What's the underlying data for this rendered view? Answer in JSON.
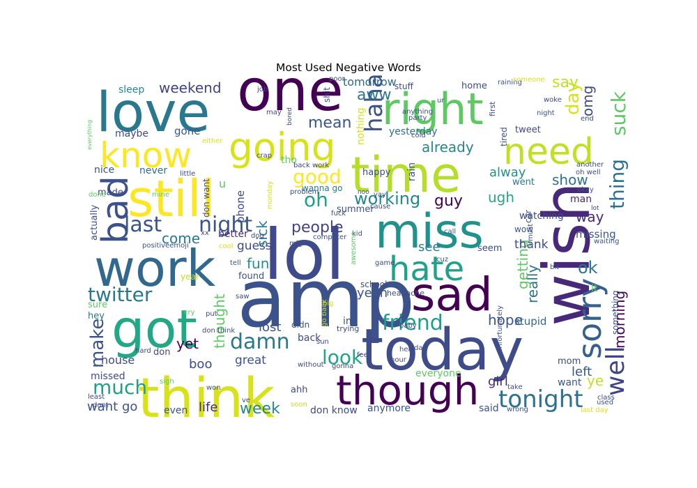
{
  "chart_data": {
    "type": "wordcloud",
    "title": "Most Used Negative Words",
    "palette": "viridis",
    "words": [
      {
        "text": "amp",
        "color": "#3b528b",
        "vertical": false
      },
      {
        "text": "lol",
        "color": "#3e4a89",
        "vertical": false
      },
      {
        "text": "one",
        "color": "#440154",
        "vertical": false
      },
      {
        "text": "today",
        "color": "#3e4c8a",
        "vertical": false
      },
      {
        "text": "think",
        "color": "#d8e219",
        "vertical": false
      },
      {
        "text": "time",
        "color": "#b5de2b",
        "vertical": false
      },
      {
        "text": "miss",
        "color": "#21918c",
        "vertical": false
      },
      {
        "text": "still",
        "color": "#fde725",
        "vertical": false
      },
      {
        "text": "wish",
        "color": "#482878",
        "vertical": true
      },
      {
        "text": "love",
        "color": "#2a788e",
        "vertical": false
      },
      {
        "text": "got",
        "color": "#22a884",
        "vertical": false
      },
      {
        "text": "work",
        "color": "#31688e",
        "vertical": false
      },
      {
        "text": "right",
        "color": "#5ec962",
        "vertical": false
      },
      {
        "text": "sad",
        "color": "#440154",
        "vertical": false
      },
      {
        "text": "though",
        "color": "#440154",
        "vertical": false
      },
      {
        "text": "going",
        "color": "#d8e219",
        "vertical": false
      },
      {
        "text": "know",
        "color": "#fde725",
        "vertical": false
      },
      {
        "text": "need",
        "color": "#c2df23",
        "vertical": false
      },
      {
        "text": "hate",
        "color": "#1fa287",
        "vertical": false
      },
      {
        "text": "sorry",
        "color": "#355f8d",
        "vertical": true
      },
      {
        "text": "bad",
        "color": "#3b528b",
        "vertical": true
      },
      {
        "text": "twitter",
        "color": "#2a788e",
        "vertical": false
      },
      {
        "text": "night",
        "color": "#39568c",
        "vertical": false
      },
      {
        "text": "last",
        "color": "#39568c",
        "vertical": false
      },
      {
        "text": "tonight",
        "color": "#2c728e",
        "vertical": false
      },
      {
        "text": "friend",
        "color": "#1f9e89",
        "vertical": false
      },
      {
        "text": "look",
        "color": "#20a386",
        "vertical": false
      },
      {
        "text": "damn",
        "color": "#2a788e",
        "vertical": false
      },
      {
        "text": "much",
        "color": "#1f9e89",
        "vertical": false
      },
      {
        "text": "well",
        "color": "#414487",
        "vertical": true
      },
      {
        "text": "good",
        "color": "#fde725",
        "vertical": false
      },
      {
        "text": "haha",
        "color": "#3b528b",
        "vertical": true
      },
      {
        "text": "suck",
        "color": "#5ec962",
        "vertical": true
      },
      {
        "text": "thing",
        "color": "#2c728e",
        "vertical": true
      },
      {
        "text": "day",
        "color": "#d8e219",
        "vertical": true
      },
      {
        "text": "say",
        "color": "#c2df23",
        "vertical": false
      },
      {
        "text": "oh",
        "color": "#1f9e89",
        "vertical": false
      },
      {
        "text": "mean",
        "color": "#39568c",
        "vertical": false
      },
      {
        "text": "people",
        "color": "#414487",
        "vertical": false
      },
      {
        "text": "working",
        "color": "#23888e",
        "vertical": false
      },
      {
        "text": "weekend",
        "color": "#414487",
        "vertical": false
      },
      {
        "text": "aww",
        "color": "#2a788e",
        "vertical": false
      },
      {
        "text": "tomorrow",
        "color": "#31688e",
        "vertical": false
      },
      {
        "text": "already",
        "color": "#23888e",
        "vertical": false
      },
      {
        "text": "yesterday",
        "color": "#2c728e",
        "vertical": false
      },
      {
        "text": "omg",
        "color": "#3e4a89",
        "vertical": true
      },
      {
        "text": "show",
        "color": "#2c728e",
        "vertical": false
      },
      {
        "text": "ugh",
        "color": "#22a884",
        "vertical": false
      },
      {
        "text": "alway",
        "color": "#21918c",
        "vertical": false
      },
      {
        "text": "guy",
        "color": "#440154",
        "vertical": false
      },
      {
        "text": "way",
        "color": "#482878",
        "vertical": false
      },
      {
        "text": "ok",
        "color": "#2a788e",
        "vertical": false
      },
      {
        "text": "morning",
        "color": "#440154",
        "vertical": true
      },
      {
        "text": "ye",
        "color": "#c2df23",
        "vertical": false
      },
      {
        "text": "come",
        "color": "#2a788e",
        "vertical": false
      },
      {
        "text": "guess",
        "color": "#3e4a89",
        "vertical": false
      },
      {
        "text": "fun",
        "color": "#21918c",
        "vertical": false
      },
      {
        "text": "see",
        "color": "#287c8e",
        "vertical": false
      },
      {
        "text": "yeah",
        "color": "#3b528b",
        "vertical": false
      },
      {
        "text": "hope",
        "color": "#3b528b",
        "vertical": false
      },
      {
        "text": "lost",
        "color": "#3b528b",
        "vertical": false
      },
      {
        "text": "make",
        "color": "#3b528b",
        "vertical": true
      },
      {
        "text": "yet",
        "color": "#440154",
        "vertical": false
      },
      {
        "text": "boo",
        "color": "#3e4a89",
        "vertical": false
      },
      {
        "text": "great",
        "color": "#3b528b",
        "vertical": false
      },
      {
        "text": "week",
        "color": "#23888e",
        "vertical": false
      },
      {
        "text": "life",
        "color": "#482878",
        "vertical": false
      },
      {
        "text": "want go",
        "color": "#3b528b",
        "vertical": false
      },
      {
        "text": "girl",
        "color": "#482878",
        "vertical": false
      },
      {
        "text": "left",
        "color": "#39568c",
        "vertical": false
      },
      {
        "text": "sick",
        "color": "#2a788e",
        "vertical": true
      },
      {
        "text": "really",
        "color": "#2c728e",
        "vertical": true
      },
      {
        "text": "getting",
        "color": "#5ec962",
        "vertical": true
      },
      {
        "text": "thank",
        "color": "#3e4a89",
        "vertical": false
      },
      {
        "text": "stupid",
        "color": "#31688e",
        "vertical": false
      },
      {
        "text": "thought",
        "color": "#5ec962",
        "vertical": true
      },
      {
        "text": "missing",
        "color": "#39568c",
        "vertical": false
      },
      {
        "text": "house",
        "color": "#3e4a89",
        "vertical": false
      },
      {
        "text": "missed",
        "color": "#3e4a89",
        "vertical": false
      },
      {
        "text": "even",
        "color": "#3b528b",
        "vertical": false
      },
      {
        "text": "don know",
        "color": "#3e4a89",
        "vertical": false
      },
      {
        "text": "anymore",
        "color": "#3b528b",
        "vertical": false
      },
      {
        "text": "everyone",
        "color": "#5ec962",
        "vertical": false
      },
      {
        "text": "said",
        "color": "#3b528b",
        "vertical": false
      },
      {
        "text": "mom",
        "color": "#3e4a89",
        "vertical": false
      },
      {
        "text": "want",
        "color": "#39568c",
        "vertical": false
      },
      {
        "text": "sleep",
        "color": "#23888e",
        "vertical": false
      },
      {
        "text": "gone",
        "color": "#39568c",
        "vertical": false
      },
      {
        "text": "maybe",
        "color": "#3e4a89",
        "vertical": false
      },
      {
        "text": "nice",
        "color": "#3b528b",
        "vertical": false
      },
      {
        "text": "never",
        "color": "#2c728e",
        "vertical": false
      },
      {
        "text": "made",
        "color": "#414487",
        "vertical": false
      },
      {
        "text": "better",
        "color": "#482878",
        "vertical": false
      },
      {
        "text": "tho",
        "color": "#5ec962",
        "vertical": false
      },
      {
        "text": "wanna go",
        "color": "#2a788e",
        "vertical": false
      },
      {
        "text": "happy",
        "color": "#3e4a89",
        "vertical": false
      },
      {
        "text": "rain",
        "color": "#3b528b",
        "vertical": true
      },
      {
        "text": "nothing",
        "color": "#d8e219",
        "vertical": true
      },
      {
        "text": "shit",
        "color": "#3e4a89",
        "vertical": true
      },
      {
        "text": "home",
        "color": "#3e4a89",
        "vertical": false
      },
      {
        "text": "tired",
        "color": "#3b528b",
        "vertical": true
      },
      {
        "text": "went",
        "color": "#2a788e",
        "vertical": false
      },
      {
        "text": "man",
        "color": "#482878",
        "vertical": false
      },
      {
        "text": "car",
        "color": "#3b528b",
        "vertical": true
      },
      {
        "text": "watching",
        "color": "#3e4a89",
        "vertical": false
      },
      {
        "text": "tweet",
        "color": "#3e4a89",
        "vertical": false
      },
      {
        "text": "wow",
        "color": "#3b528b",
        "vertical": false
      },
      {
        "text": "seem",
        "color": "#3e4a89",
        "vertical": false
      },
      {
        "text": "phone",
        "color": "#3e4a89",
        "vertical": true
      },
      {
        "text": "u",
        "color": "#5ec962",
        "vertical": false
      },
      {
        "text": "don want",
        "color": "#3e4a89",
        "vertical": true
      },
      {
        "text": "actually",
        "color": "#3e4a89",
        "vertical": true
      },
      {
        "text": "summer",
        "color": "#3b528b",
        "vertical": false
      },
      {
        "text": "found",
        "color": "#3b528b",
        "vertical": false
      },
      {
        "text": "school",
        "color": "#3e4a89",
        "vertical": false
      },
      {
        "text": "im",
        "color": "#3b528b",
        "vertical": false
      },
      {
        "text": "back",
        "color": "#3e4a89",
        "vertical": false
      },
      {
        "text": "didn",
        "color": "#3b528b",
        "vertical": false
      },
      {
        "text": "don",
        "color": "#3e4a89",
        "vertical": false
      },
      {
        "text": "sure",
        "color": "#5ec962",
        "vertical": false
      },
      {
        "text": "hey",
        "color": "#2a788e",
        "vertical": false
      },
      {
        "text": "ahh",
        "color": "#3e4a89",
        "vertical": false
      },
      {
        "text": "something",
        "color": "#3b528b",
        "vertical": true
      },
      {
        "text": "lt",
        "color": "#5ec962",
        "vertical": false
      },
      {
        "text": "year",
        "color": "#c2df23",
        "vertical": false
      },
      {
        "text": "stuff",
        "color": "#3e4a89",
        "vertical": false
      },
      {
        "text": "first",
        "color": "#3e4a89",
        "vertical": true
      },
      {
        "text": "raining",
        "color": "#3b528b",
        "vertical": false
      },
      {
        "text": "someone",
        "color": "#d8e219",
        "vertical": false
      },
      {
        "text": "woke",
        "color": "#3e4a89",
        "vertical": false
      },
      {
        "text": "night",
        "color": "#3b528b",
        "vertical": false
      },
      {
        "text": "end",
        "color": "#3e4a89",
        "vertical": false
      },
      {
        "text": "another",
        "color": "#3e4a89",
        "vertical": false
      },
      {
        "text": "oh well",
        "color": "#3e4a89",
        "vertical": false
      },
      {
        "text": "okay",
        "color": "#3b528b",
        "vertical": false
      },
      {
        "text": "lot",
        "color": "#3e4a89",
        "vertical": false
      },
      {
        "text": "waiting",
        "color": "#3b528b",
        "vertical": false
      },
      {
        "text": "bit",
        "color": "#3e4a89",
        "vertical": false
      },
      {
        "text": "call",
        "color": "#3b528b",
        "vertical": false
      },
      {
        "text": "cuz",
        "color": "#3b528b",
        "vertical": false
      },
      {
        "text": "game",
        "color": "#3e4a89",
        "vertical": false
      },
      {
        "text": "cause",
        "color": "#3e4a89",
        "vertical": false
      },
      {
        "text": "fuck",
        "color": "#3e4a89",
        "vertical": false
      },
      {
        "text": "kid",
        "color": "#3e4a89",
        "vertical": false
      },
      {
        "text": "computer",
        "color": "#3b528b",
        "vertical": false
      },
      {
        "text": "might",
        "color": "#3e4a89",
        "vertical": false
      },
      {
        "text": "dog",
        "color": "#3e4a89",
        "vertical": false
      },
      {
        "text": "positiveemoji",
        "color": "#3b528b",
        "vertical": false
      },
      {
        "text": "xx",
        "color": "#3e4a89",
        "vertical": false
      },
      {
        "text": "cool",
        "color": "#d8e219",
        "vertical": false
      },
      {
        "text": "tell",
        "color": "#3b528b",
        "vertical": false
      },
      {
        "text": "saw",
        "color": "#3e4a89",
        "vertical": false
      },
      {
        "text": "cry",
        "color": "#5ec962",
        "vertical": false
      },
      {
        "text": "put",
        "color": "#3e4a89",
        "vertical": false
      },
      {
        "text": "don think",
        "color": "#3e4a89",
        "vertical": false
      },
      {
        "text": "go back",
        "color": "#c2df23",
        "vertical": true
      },
      {
        "text": "big",
        "color": "#d8e219",
        "vertical": false
      },
      {
        "text": "trying",
        "color": "#3e4a89",
        "vertical": false
      },
      {
        "text": "sun",
        "color": "#3e4a89",
        "vertical": false
      },
      {
        "text": "awesome",
        "color": "#5ec962",
        "vertical": true
      },
      {
        "text": "headache",
        "color": "#3e4a89",
        "vertical": false
      },
      {
        "text": "baby",
        "color": "#3e4a89",
        "vertical": false
      },
      {
        "text": "help",
        "color": "#3e4a89",
        "vertical": false
      },
      {
        "text": "unfortunately",
        "color": "#3b528b",
        "vertical": true
      },
      {
        "text": "feel",
        "color": "#3e4a89",
        "vertical": false
      },
      {
        "text": "hour",
        "color": "#3e4a89",
        "vertical": false
      },
      {
        "text": "dad",
        "color": "#3e4a89",
        "vertical": false
      },
      {
        "text": "gonna",
        "color": "#3e4a89",
        "vertical": false
      },
      {
        "text": "without",
        "color": "#3e4a89",
        "vertical": false
      },
      {
        "text": "hard",
        "color": "#3e4a89",
        "vertical": false
      },
      {
        "text": "sigh",
        "color": "#5ec962",
        "vertical": false
      },
      {
        "text": "least",
        "color": "#3e4a89",
        "vertical": false
      },
      {
        "text": "dont",
        "color": "#3e4a89",
        "vertical": false
      },
      {
        "text": "won",
        "color": "#3e4a89",
        "vertical": false
      },
      {
        "text": "ve",
        "color": "#3e4a89",
        "vertical": false
      },
      {
        "text": "soon",
        "color": "#c2df23",
        "vertical": false
      },
      {
        "text": "wrong",
        "color": "#3b528b",
        "vertical": false
      },
      {
        "text": "take",
        "color": "#3e4a89",
        "vertical": false
      },
      {
        "text": "must",
        "color": "#3e4a89",
        "vertical": true
      },
      {
        "text": "class",
        "color": "#3e4a89",
        "vertical": false
      },
      {
        "text": "used",
        "color": "#3b528b",
        "vertical": false
      },
      {
        "text": "last day",
        "color": "#d8e219",
        "vertical": false
      },
      {
        "text": "everything",
        "color": "#5ec962",
        "vertical": true
      },
      {
        "text": "either",
        "color": "#d8e219",
        "vertical": false
      },
      {
        "text": "crap",
        "color": "#3e4a89",
        "vertical": false
      },
      {
        "text": "little",
        "color": "#3e4a89",
        "vertical": false
      },
      {
        "text": "back work",
        "color": "#3e4a89",
        "vertical": false
      },
      {
        "text": "problem",
        "color": "#3e4a89",
        "vertical": false
      },
      {
        "text": "monday",
        "color": "#d8e219",
        "vertical": true
      },
      {
        "text": "noo",
        "color": "#3e4a89",
        "vertical": false
      },
      {
        "text": "yay",
        "color": "#3e4a89",
        "vertical": false
      },
      {
        "text": "bored",
        "color": "#3e4a89",
        "vertical": true
      },
      {
        "text": "job",
        "color": "#3e4a89",
        "vertical": false
      },
      {
        "text": "may",
        "color": "#3e4a89",
        "vertical": false
      },
      {
        "text": "poor",
        "color": "#3e4a89",
        "vertical": false
      },
      {
        "text": "ur",
        "color": "#3e4a89",
        "vertical": false
      },
      {
        "text": "anything",
        "color": "#3e4a89",
        "vertical": false
      },
      {
        "text": "party",
        "color": "#3e4a89",
        "vertical": false
      },
      {
        "text": "cold",
        "color": "#3e4a89",
        "vertical": false
      },
      {
        "text": "done",
        "color": "#5ec962",
        "vertical": false
      },
      {
        "text": "mine",
        "color": "#5ec962",
        "vertical": false
      }
    ]
  }
}
